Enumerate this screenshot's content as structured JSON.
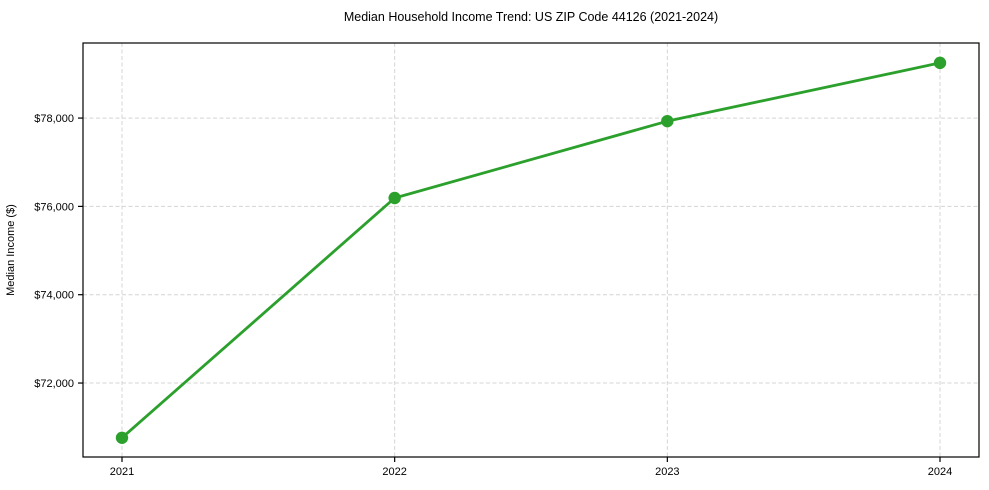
{
  "page": {
    "background_color": "#ffffff"
  },
  "chart_data": {
    "type": "line",
    "title": "Median Household Income Trend: US ZIP Code 44126 (2021-2024)",
    "xlabel": "",
    "ylabel": "Median Income ($)",
    "categories": [
      "2021",
      "2022",
      "2023",
      "2024"
    ],
    "values": [
      70760,
      76190,
      77930,
      79250
    ],
    "series_name": "median-household-income",
    "ylim": [
      70325,
      79700
    ],
    "yticks": {
      "values": [
        72000,
        74000,
        76000,
        78000
      ],
      "labels": [
        "$72,000",
        "$74,000",
        "$76,000",
        "$78,000"
      ]
    },
    "grid": true,
    "grid_style": "dashed",
    "legend_position": "none",
    "line_color": "#2ca02c",
    "marker": "circle",
    "marker_color": "#2ca02c",
    "grid_color": "#d4d4d4",
    "spine_color": "#000000",
    "text_color": "#000000"
  }
}
